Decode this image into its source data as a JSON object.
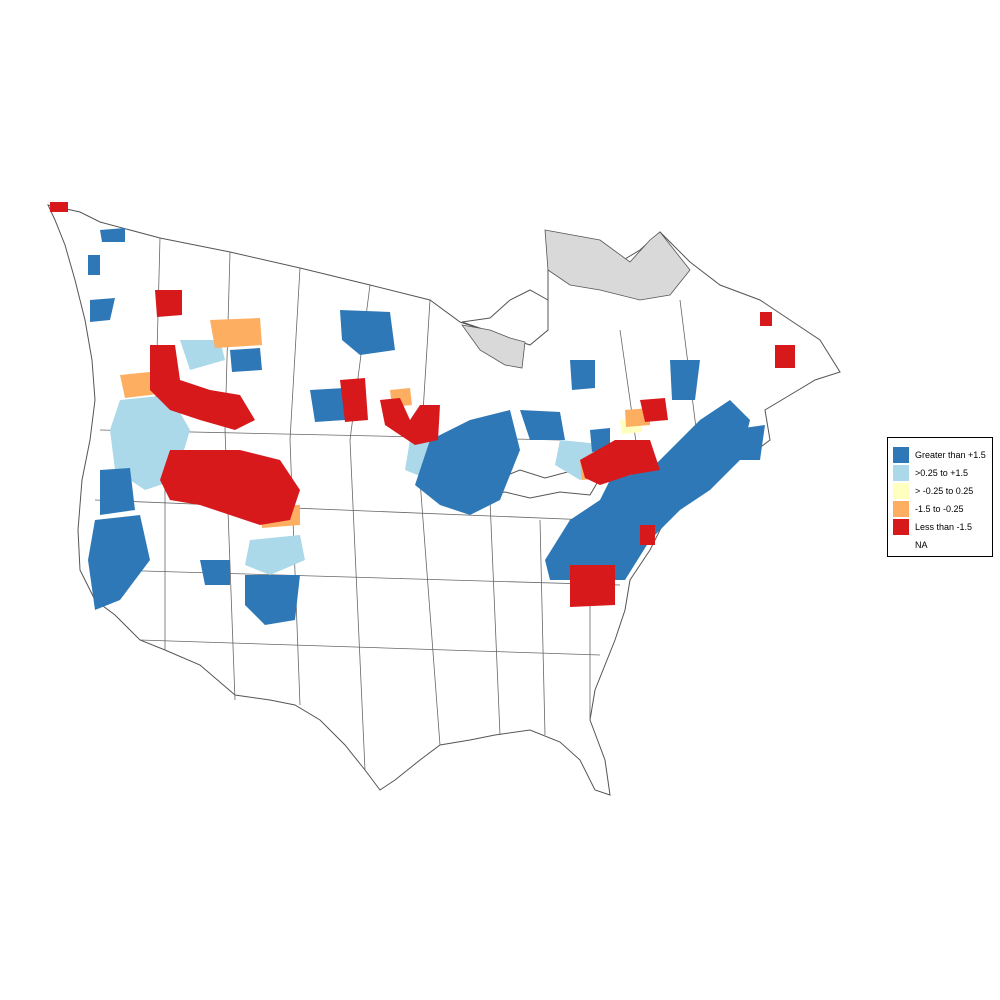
{
  "legend": {
    "items": [
      {
        "label": "Greater than +1.5",
        "color": "#2e78b7"
      },
      {
        "label": ">0.25 to +1.5",
        "color": "#abd9e9"
      },
      {
        "label": "> -0.25 to 0.25",
        "color": "#ffffbf"
      },
      {
        "label": "-1.5 to -0.25",
        "color": "#fdae61"
      },
      {
        "label": "Less than -1.5",
        "color": "#d7191c"
      },
      {
        "label": "NA",
        "color": "#ffffff"
      }
    ]
  },
  "colors": {
    "na_region": "#d9d9d9",
    "boundary": "#555555",
    "background": "#ffffff"
  }
}
